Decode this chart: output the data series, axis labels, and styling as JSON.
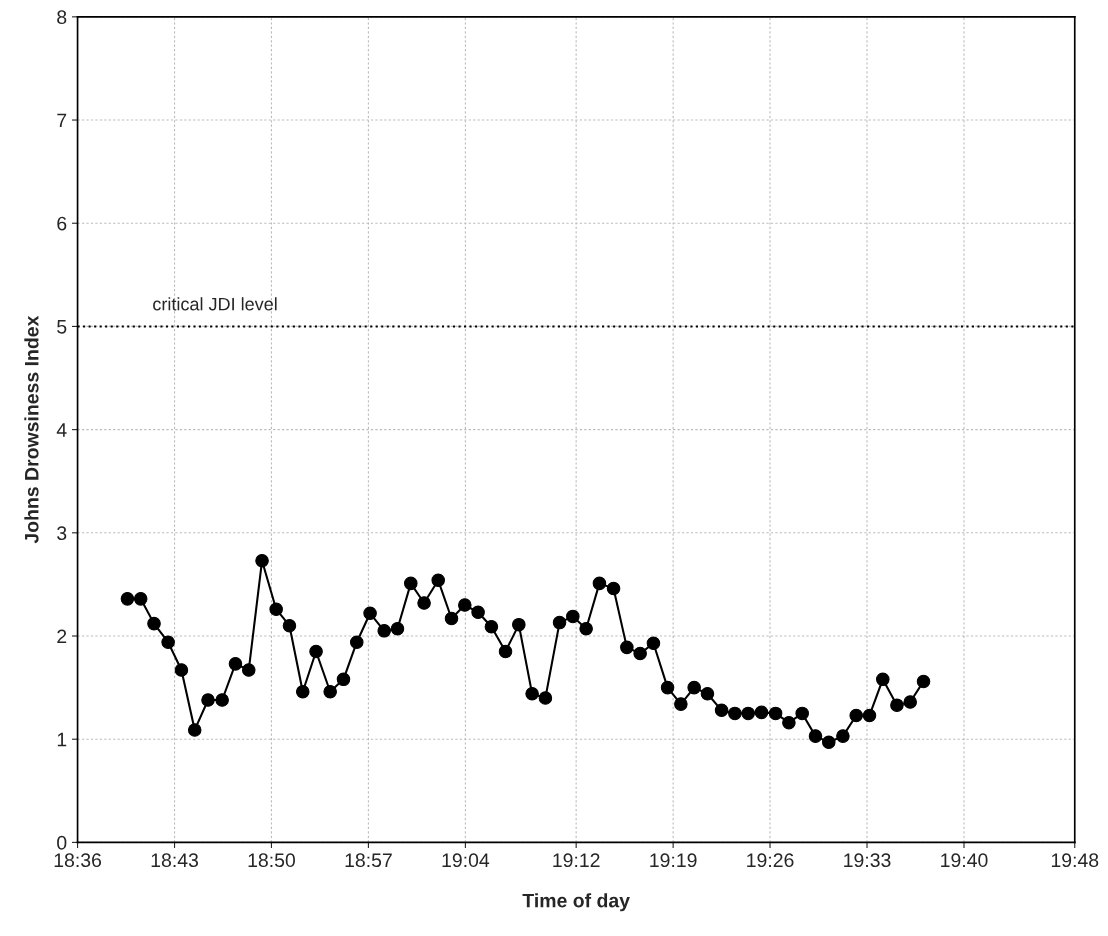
{
  "chart_data": {
    "type": "line",
    "xlabel": "Time of day",
    "ylabel": "Johns Drowsiness Index",
    "x": [
      18.66,
      18.676,
      18.692,
      18.709,
      18.725,
      18.741,
      18.757,
      18.774,
      18.79,
      18.806,
      18.822,
      18.839,
      18.855,
      18.871,
      18.887,
      18.904,
      18.92,
      18.936,
      18.952,
      18.969,
      18.985,
      19.001,
      19.017,
      19.034,
      19.05,
      19.066,
      19.082,
      19.098,
      19.115,
      19.131,
      19.147,
      19.163,
      19.18,
      19.196,
      19.212,
      19.228,
      19.245,
      19.261,
      19.277,
      19.293,
      19.31,
      19.326,
      19.342,
      19.358,
      19.375,
      19.391,
      19.407,
      19.423,
      19.44,
      19.456,
      19.472,
      19.488,
      19.504,
      19.521,
      19.537,
      19.553,
      19.569,
      19.586,
      19.602,
      19.618
    ],
    "series": [
      {
        "color": "#000000",
        "values": [
          2.36,
          2.36,
          2.12,
          1.94,
          1.67,
          1.09,
          1.38,
          1.38,
          1.73,
          1.67,
          2.73,
          2.26,
          2.1,
          1.46,
          1.85,
          1.46,
          1.58,
          1.94,
          2.22,
          2.05,
          2.07,
          2.51,
          2.32,
          2.54,
          2.17,
          2.3,
          2.23,
          2.09,
          1.85,
          2.11,
          1.44,
          1.4,
          2.13,
          2.19,
          2.07,
          2.51,
          2.46,
          1.89,
          1.83,
          1.93,
          1.5,
          1.34,
          1.5,
          1.44,
          1.28,
          1.25,
          1.25,
          1.26,
          1.25,
          1.16,
          1.25,
          1.03,
          0.97,
          1.03,
          1.23,
          1.23,
          1.58,
          1.33,
          1.36,
          1.56
        ]
      }
    ],
    "xlim": [
      18.6,
      19.8
    ],
    "xticks": [
      {
        "value": 18.6,
        "label": "18:36"
      },
      {
        "value": 18.7167,
        "label": "18:43"
      },
      {
        "value": 18.8333,
        "label": "18:50"
      },
      {
        "value": 18.95,
        "label": "18:57"
      },
      {
        "value": 19.0667,
        "label": "19:04"
      },
      {
        "value": 19.2,
        "label": "19:12"
      },
      {
        "value": 19.3167,
        "label": "19:19"
      },
      {
        "value": 19.4333,
        "label": "19:26"
      },
      {
        "value": 19.55,
        "label": "19:33"
      },
      {
        "value": 19.6667,
        "label": "19:40"
      },
      {
        "value": 19.8,
        "label": "19:48"
      }
    ],
    "ylim": [
      0,
      8
    ],
    "yticks": [
      0,
      1,
      2,
      3,
      4,
      5,
      6,
      7,
      8
    ],
    "ref_lines": [
      {
        "axis": "y",
        "value": 5,
        "label": "critical JDI level",
        "color": "#000000",
        "line_style": "dotted"
      }
    ],
    "grid": true,
    "marker": "circle",
    "line_style": "solid",
    "legend": false
  }
}
